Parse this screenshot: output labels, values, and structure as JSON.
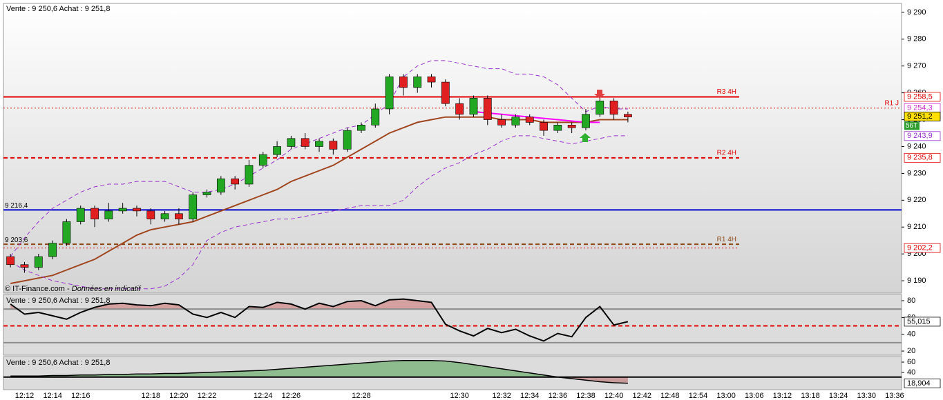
{
  "chart_data": [
    {
      "type": "candlestick",
      "title": "Vente : 9 250,6 Achat : 9 251,8",
      "credit": "© IT-Finance.com -",
      "credit_note": "Données en indicatif",
      "categories": [
        null,
        "12:12",
        null,
        "12:14",
        null,
        "12:16",
        null,
        null,
        null,
        null,
        "12:18",
        null,
        "12:20",
        null,
        "12:22",
        null,
        null,
        null,
        "12:24",
        null,
        "12:26",
        null,
        null,
        null,
        null,
        "12:28",
        null,
        null,
        null,
        null,
        null,
        null,
        "12:30",
        null,
        null,
        "12:32",
        null,
        "12:34",
        null,
        "12:36",
        null,
        "12:38",
        null,
        "12:40",
        null,
        "12:42",
        null,
        "12:48",
        null,
        "12:54",
        null,
        "13:00",
        null,
        "13:06",
        null,
        "13:12",
        null,
        "13:18",
        null,
        "13:24",
        null,
        "13:30",
        null,
        "13:36"
      ],
      "open": [
        9199,
        9196,
        9195,
        9199,
        9204,
        9212,
        9217,
        9213,
        9216,
        9217,
        9216,
        9213,
        9215,
        9213,
        9222,
        9223,
        9228,
        9226,
        9233,
        9237,
        9240,
        9243,
        9240,
        9242,
        9239,
        9246,
        9248,
        9254,
        9266,
        9262,
        9266,
        9264,
        9256,
        9252,
        9258,
        9250,
        9248,
        9251,
        9249,
        9246,
        9248,
        9247,
        9252,
        9257,
        9252,
        null,
        null,
        null,
        null,
        null,
        null,
        null,
        null,
        null,
        null,
        null,
        null,
        null,
        null,
        null,
        null,
        null,
        null,
        null
      ],
      "high": [
        9200,
        9197,
        9200,
        9205,
        9213,
        9218,
        9218,
        9219,
        9219,
        9218,
        9217,
        9216,
        9217,
        9223,
        9224,
        9229,
        9229,
        9235,
        9238,
        9242,
        9244,
        9245,
        9243,
        9243,
        9247,
        9249,
        9256,
        9267,
        9267,
        9267,
        9267,
        9265,
        9258,
        9259,
        9259,
        9252,
        9252,
        9252,
        9250,
        9249,
        9249,
        9254,
        9259,
        9258,
        9253,
        null,
        null,
        null,
        null,
        null,
        null,
        null,
        null,
        null,
        null,
        null,
        null,
        null,
        null,
        null,
        null,
        null,
        null,
        null
      ],
      "low": [
        9195,
        9193,
        9194,
        9198,
        9203,
        9211,
        9210,
        9212,
        9215,
        9214,
        9211,
        9212,
        9211,
        9212,
        9221,
        9222,
        9224,
        9225,
        9232,
        9236,
        9239,
        9239,
        9238,
        9237,
        9238,
        9245,
        9247,
        9252,
        9259,
        9260,
        9262,
        9255,
        9250,
        9251,
        9248,
        9247,
        9247,
        9248,
        9244,
        9245,
        9245,
        9246,
        9251,
        9250,
        9249,
        null,
        null,
        null,
        null,
        null,
        null,
        null,
        null,
        null,
        null,
        null,
        null,
        null,
        null,
        null,
        null,
        null,
        null,
        null
      ],
      "close": [
        9196,
        9195,
        9199,
        9204,
        9212,
        9217,
        9213,
        9216,
        9217,
        9216,
        9213,
        9215,
        9213,
        9222,
        9223,
        9228,
        9226,
        9233,
        9237,
        9240,
        9243,
        9240,
        9242,
        9239,
        9246,
        9248,
        9254,
        9266,
        9262,
        9266,
        9264,
        9256,
        9252,
        9258,
        9250,
        9248,
        9251,
        9249,
        9246,
        9248,
        9247,
        9252,
        9257,
        9252,
        9251,
        null,
        null,
        null,
        null,
        null,
        null,
        null,
        null,
        null,
        null,
        null,
        null,
        null,
        null,
        null,
        null,
        null,
        null,
        null
      ],
      "up_color": "#22a822",
      "down_color": "#e02020",
      "overlays": [
        {
          "color": "#a0461e",
          "dash": "solid",
          "width": 2,
          "values": [
            9189,
            9190,
            9191,
            9192,
            9194,
            9196,
            9198,
            9201,
            9204,
            9207,
            9209,
            9210,
            9211,
            9212,
            9214,
            9216,
            9218,
            9220,
            9222,
            9224,
            9227,
            9229,
            9231,
            9233,
            9236,
            9239,
            9242,
            9245,
            9247,
            9249,
            9250,
            9251,
            9251,
            9251,
            9251,
            9250,
            9250,
            9250,
            9249,
            9249,
            9249,
            9249,
            9250,
            9250,
            9250,
            null,
            null,
            null,
            null,
            null,
            null,
            null,
            null,
            null,
            null,
            null,
            null,
            null,
            null,
            null,
            null,
            null,
            null,
            null
          ]
        },
        {
          "color": "#9932cc",
          "dash": "dashed",
          "width": 1,
          "values": [
            9199,
            9206,
            9212,
            9217,
            9220,
            9223,
            9225,
            9226,
            9226,
            9227,
            9227,
            9227,
            9225,
            9223,
            9223,
            9224,
            9226,
            9229,
            9232,
            9235,
            9239,
            9241,
            9243,
            9245,
            9247,
            9248,
            9252,
            9256,
            9266,
            9270,
            9272,
            9272,
            9271,
            9270,
            9269,
            9269,
            9267,
            9267,
            9266,
            9263,
            9258,
            9253,
            9255,
            9254,
            9254,
            null,
            null,
            null,
            null,
            null,
            null,
            null,
            null,
            null,
            null,
            null,
            null,
            null,
            null,
            null,
            null,
            null,
            null,
            null
          ]
        },
        {
          "color": "#9932cc",
          "dash": "dashed",
          "width": 1,
          "values": [
            9197,
            9194,
            9192,
            9190,
            9189,
            9188,
            9187,
            9187,
            9187,
            9187,
            9187,
            9188,
            9191,
            9196,
            9205,
            9208,
            9210,
            9211,
            9212,
            9213,
            9213,
            9214,
            9215,
            9216,
            9217,
            9218,
            9218,
            9218,
            9220,
            9225,
            9229,
            9232,
            9234,
            9237,
            9239,
            9242,
            9244,
            9244,
            9243,
            9242,
            9241,
            9242,
            9243,
            9244,
            9244,
            null,
            null,
            null,
            null,
            null,
            null,
            null,
            null,
            null,
            null,
            null,
            null,
            null,
            null,
            null,
            null,
            null,
            null,
            null
          ]
        },
        {
          "color": "#ff00ff",
          "dash": "solid",
          "width": 2,
          "values": [
            null,
            null,
            null,
            null,
            null,
            null,
            null,
            null,
            null,
            null,
            null,
            null,
            null,
            null,
            null,
            null,
            null,
            null,
            null,
            null,
            null,
            null,
            null,
            null,
            null,
            null,
            null,
            null,
            null,
            null,
            null,
            null,
            null,
            9253,
            9252.5,
            9252,
            9251.5,
            9251,
            9250.5,
            9250,
            9249.5,
            9249,
            9249,
            null,
            null,
            null,
            null,
            null,
            null,
            null,
            null,
            null,
            null,
            null,
            null,
            null,
            null,
            null,
            null,
            null,
            null,
            null
          ]
        }
      ],
      "levels": [
        {
          "value": 9258.5,
          "color": "#e00000",
          "dash": "solid",
          "width": 2,
          "extent": "partial",
          "right_label": "R3 4H"
        },
        {
          "value": 9254.3,
          "color": "#e00000",
          "dash": "dotted",
          "width": 1,
          "extent": "full",
          "right_label": "R1 J"
        },
        {
          "value": 9235.8,
          "color": "#e00000",
          "dash": "dashed",
          "width": 2,
          "extent": "partial",
          "right_label": "R2 4H"
        },
        {
          "value": 9216.4,
          "color": "#0000cc",
          "dash": "solid",
          "width": 2,
          "extent": "full",
          "left_label": "9 216,4"
        },
        {
          "value": 9203.6,
          "color": "#8b4513",
          "dash": "dashed",
          "width": 2,
          "extent": "partial",
          "left_label": "9 203,6",
          "right_label": "R1 4H"
        },
        {
          "value": 9202.2,
          "color": "#e00000",
          "dash": "dotted",
          "width": 1,
          "extent": "partial"
        }
      ],
      "tags": [
        {
          "value": 9258.5,
          "label": "9 258,5",
          "color": "#e00000"
        },
        {
          "value": 9254.3,
          "label": "9 254,3",
          "color": "#cc33cc"
        },
        {
          "value": 9251.2,
          "label": "9 251,2",
          "color": "#000000",
          "bg": "#ffe000",
          "volume": "56T"
        },
        {
          "value": 9243.9,
          "label": "9 243,9",
          "color": "#9932cc"
        },
        {
          "value": 9235.8,
          "label": "9 235,8",
          "color": "#e00000"
        },
        {
          "value": 9202.2,
          "label": "9 202,2",
          "color": "#e00000"
        }
      ],
      "ylim": [
        9185.4,
        9293.3
      ],
      "yticks": [
        {
          "value": 9190,
          "label": "9 190"
        },
        {
          "value": 9200,
          "label": "9 200"
        },
        {
          "value": 9210,
          "label": "9 210"
        },
        {
          "value": 9220,
          "label": "9 220"
        },
        {
          "value": 9230,
          "label": "9 230"
        },
        {
          "value": 9240,
          "label": "9 240"
        },
        {
          "value": 9250,
          "label": "9 250"
        },
        {
          "value": 9260,
          "label": "9 260"
        },
        {
          "value": 9270,
          "label": "9 270"
        },
        {
          "value": 9280,
          "label": "9 280"
        },
        {
          "value": 9290,
          "label": "9 290"
        }
      ]
    },
    {
      "type": "line",
      "title": "Vente : 9 250,6 Achat : 9 251,8",
      "color": "#000000",
      "values": [
        76,
        64,
        66,
        62,
        58,
        66,
        72,
        76,
        77,
        75,
        74,
        77,
        75,
        64,
        60,
        66,
        60,
        73,
        72,
        78,
        76,
        70,
        77,
        73,
        79,
        80,
        74,
        81,
        82,
        80,
        78,
        52,
        44,
        38,
        47,
        42,
        46,
        38,
        32,
        41,
        37,
        60,
        73,
        51,
        55,
        null,
        null,
        null,
        null,
        null,
        null,
        null,
        null,
        null,
        null,
        null,
        null,
        null,
        null,
        null,
        null,
        null,
        null,
        null
      ],
      "levels": [
        {
          "value": 70,
          "color": "#8c8c8c",
          "dash": "solid",
          "width": 2,
          "extent": "full",
          "fill_above": "#d4a0a0"
        },
        {
          "value": 50,
          "color": "#e00000",
          "dash": "dashed",
          "width": 2,
          "extent": "full"
        },
        {
          "value": 30,
          "color": "#8c8c8c",
          "dash": "solid",
          "width": 2,
          "extent": "full"
        }
      ],
      "tags": [
        {
          "value": 55.015,
          "label": "55,015",
          "color": "#000000"
        }
      ],
      "ylim": [
        15.1,
        87.4
      ],
      "yticks": [
        20,
        40,
        60,
        80
      ]
    },
    {
      "type": "area",
      "title": "Vente : 9 250,6 Achat : 9 251,8",
      "color": "#000000",
      "values": [
        33,
        33,
        33,
        34,
        34,
        35,
        35,
        36,
        36,
        37,
        37,
        38,
        38,
        39,
        40,
        41,
        42,
        43,
        44,
        46,
        48,
        50,
        52,
        54,
        56,
        58,
        60,
        62,
        63,
        63,
        63,
        62,
        59,
        55,
        51,
        47,
        43,
        39,
        35,
        31,
        28,
        25,
        22,
        20,
        19,
        null,
        null,
        null,
        null,
        null,
        null,
        null,
        null,
        null,
        null,
        null,
        null,
        null,
        null,
        null,
        null,
        null,
        null,
        null
      ],
      "levels": [
        {
          "value": 31,
          "color": "#000000",
          "dash": "solid",
          "width": 2,
          "extent": "full",
          "fill_above": "#8fbc8f",
          "fill_below": "#c89a9a"
        }
      ],
      "tags": [
        {
          "value": 18.904,
          "label": "18,904",
          "color": "#000000"
        }
      ],
      "ylim": [
        6.7,
        70.7
      ],
      "yticks": [
        40,
        60
      ]
    }
  ]
}
